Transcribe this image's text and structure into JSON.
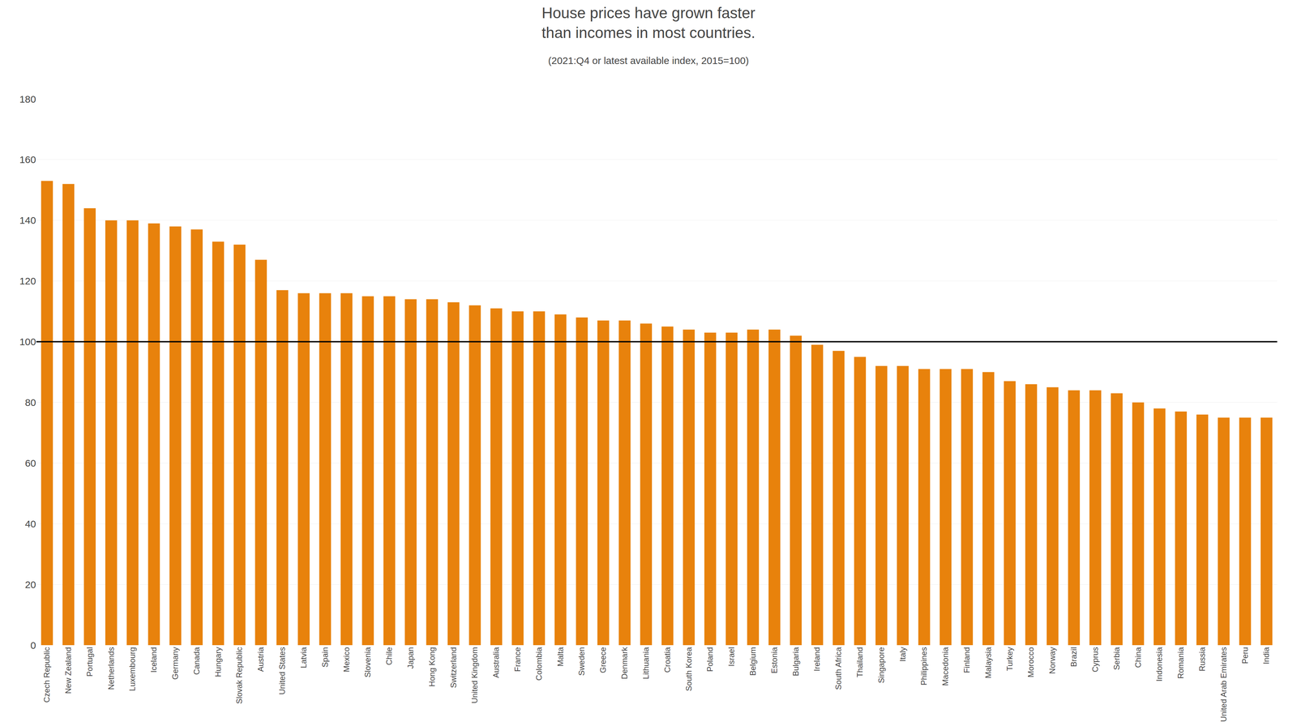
{
  "chart_data": {
    "type": "bar",
    "title": "House prices have grown faster\nthan incomes in most countries.",
    "subtitle": "(2021:Q4 or latest available index, 2015=100)",
    "categories": [
      "Czech Republic",
      "New Zealand",
      "Portugal",
      "Netherlands",
      "Luxembourg",
      "Iceland",
      "Germany",
      "Canada",
      "Hungary",
      "Slovak Republic",
      "Austria",
      "United States",
      "Latvia",
      "Spain",
      "Mexico",
      "Slovenia",
      "Chile",
      "Japan",
      "Hong Kong",
      "Switzerland",
      "United Kingdom",
      "Australia",
      "France",
      "Colombia",
      "Malta",
      "Sweden",
      "Greece",
      "Denmark",
      "Lithuania",
      "Croatia",
      "South Korea",
      "Poland",
      "Israel",
      "Belgium",
      "Estonia",
      "Bulgaria",
      "Ireland",
      "South Africa",
      "Thailand",
      "Singapore",
      "Italy",
      "Philippines",
      "Macedonia",
      "Finland",
      "Malaysia",
      "Turkey",
      "Morocco",
      "Norway",
      "Brazil",
      "Cyprus",
      "Serbia",
      "China",
      "Indonesia",
      "Romania",
      "Russia",
      "United Arab Emirates",
      "Peru",
      "India"
    ],
    "values": [
      153,
      152,
      144,
      140,
      140,
      139,
      138,
      137,
      133,
      132,
      127,
      117,
      116,
      116,
      116,
      115,
      115,
      114,
      114,
      113,
      112,
      111,
      110,
      110,
      109,
      108,
      107,
      107,
      106,
      105,
      104,
      103,
      103,
      104,
      104,
      102,
      99,
      97,
      95,
      92,
      92,
      91,
      91,
      91,
      90,
      87,
      86,
      85,
      84,
      84,
      83,
      80,
      78,
      77,
      76,
      75,
      75,
      75
    ],
    "color": "#e8820c",
    "reference_line": 100,
    "ylim": [
      0,
      180
    ],
    "yticks": [
      0,
      20,
      40,
      60,
      80,
      100,
      120,
      140,
      160,
      180
    ],
    "grid": true
  }
}
